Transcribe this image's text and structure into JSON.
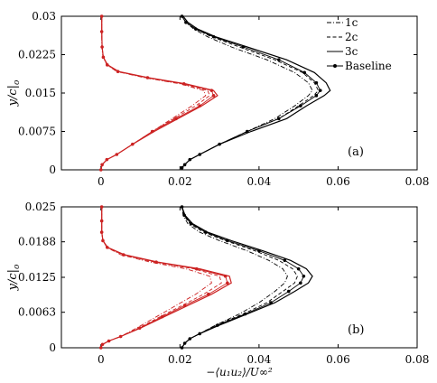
{
  "chart_data": [
    {
      "type": "line",
      "panel_label": "(a)",
      "ylabel": "y/c|_0",
      "xlabel": "",
      "xlim": [
        -0.01,
        0.08
      ],
      "ylim": [
        0,
        0.03
      ],
      "x_ticks": [
        0,
        0.02,
        0.04,
        0.06,
        0.08
      ],
      "x_tick_labels": [
        "0",
        "0.02",
        "0.04",
        "0.06",
        "0.08"
      ],
      "y_ticks": [
        0,
        0.0075,
        0.015,
        0.0225,
        0.03
      ],
      "y_tick_labels": [
        "0",
        "0.0075",
        "0.015",
        "0.0225",
        "0.03"
      ],
      "legend": {
        "placement": "top-right",
        "entries": [
          {
            "name": "1c",
            "style": "dashdot"
          },
          {
            "name": "2c",
            "style": "dashed"
          },
          {
            "name": "3c",
            "style": "solid"
          },
          {
            "name": "Baseline",
            "style": "solid-marker"
          }
        ]
      },
      "series": [
        {
          "group": "black",
          "style": "dashdot",
          "color": "#000000",
          "x": [
            0.0205,
            0.0212,
            0.0225,
            0.025,
            0.03,
            0.037,
            0.044,
            0.049,
            0.0525,
            0.0535,
            0.0525,
            0.049,
            0.042,
            0.033,
            0.027,
            0.0235,
            0.0215,
            0.0205
          ],
          "y": [
            0.0004,
            0.001,
            0.002,
            0.003,
            0.005,
            0.0075,
            0.01,
            0.0125,
            0.0145,
            0.0155,
            0.017,
            0.019,
            0.0215,
            0.024,
            0.026,
            0.0275,
            0.0288,
            0.03
          ]
        },
        {
          "group": "black",
          "style": "dashed",
          "color": "#000000",
          "x": [
            0.0205,
            0.0212,
            0.0225,
            0.025,
            0.03,
            0.037,
            0.045,
            0.05,
            0.0538,
            0.055,
            0.054,
            0.051,
            0.044,
            0.035,
            0.028,
            0.024,
            0.0215,
            0.0205
          ],
          "y": [
            0.0004,
            0.001,
            0.002,
            0.003,
            0.005,
            0.0075,
            0.01,
            0.0125,
            0.0145,
            0.0155,
            0.017,
            0.019,
            0.0215,
            0.024,
            0.026,
            0.0275,
            0.0288,
            0.03
          ]
        },
        {
          "group": "black",
          "style": "solid",
          "color": "#000000",
          "x": [
            0.0205,
            0.0212,
            0.0225,
            0.025,
            0.03,
            0.038,
            0.047,
            0.052,
            0.0565,
            0.058,
            0.057,
            0.054,
            0.047,
            0.037,
            0.029,
            0.0245,
            0.022,
            0.0208
          ],
          "y": [
            0.0004,
            0.001,
            0.002,
            0.003,
            0.005,
            0.0075,
            0.01,
            0.0125,
            0.0145,
            0.0155,
            0.017,
            0.019,
            0.0215,
            0.024,
            0.026,
            0.0275,
            0.0288,
            0.03
          ]
        },
        {
          "group": "black",
          "style": "solid-marker",
          "color": "#000000",
          "x": [
            0.0205,
            0.0212,
            0.0225,
            0.025,
            0.03,
            0.037,
            0.045,
            0.0505,
            0.0545,
            0.0555,
            0.0545,
            0.0515,
            0.045,
            0.036,
            0.0285,
            0.024,
            0.0215,
            0.0205
          ],
          "y": [
            0.0004,
            0.001,
            0.002,
            0.003,
            0.005,
            0.0075,
            0.01,
            0.0125,
            0.0145,
            0.0155,
            0.017,
            0.019,
            0.0215,
            0.024,
            0.026,
            0.0275,
            0.0288,
            0.03
          ]
        },
        {
          "group": "red",
          "style": "dashdot",
          "color": "#cc2222",
          "x": [
            0,
            0.0003,
            0.0015,
            0.004,
            0.008,
            0.013,
            0.018,
            0.023,
            0.0265,
            0.026,
            0.02,
            0.011,
            0.004,
            0.0015,
            0.0005,
            0.0002,
            0.0002,
            0.0002
          ],
          "y": [
            0,
            0.001,
            0.002,
            0.003,
            0.005,
            0.0075,
            0.01,
            0.0125,
            0.0145,
            0.0155,
            0.0168,
            0.018,
            0.0192,
            0.0205,
            0.022,
            0.024,
            0.027,
            0.03
          ]
        },
        {
          "group": "red",
          "style": "dashed",
          "color": "#cc2222",
          "x": [
            0,
            0.0003,
            0.0015,
            0.004,
            0.008,
            0.013,
            0.0185,
            0.024,
            0.0275,
            0.027,
            0.0205,
            0.0115,
            0.0042,
            0.0016,
            0.0006,
            0.0003,
            0.0002,
            0.0002
          ],
          "y": [
            0,
            0.001,
            0.002,
            0.003,
            0.005,
            0.0075,
            0.01,
            0.0125,
            0.0145,
            0.0155,
            0.0168,
            0.018,
            0.0192,
            0.0205,
            0.022,
            0.024,
            0.027,
            0.03
          ]
        },
        {
          "group": "red",
          "style": "solid",
          "color": "#cc2222",
          "x": [
            0,
            0.0003,
            0.0015,
            0.004,
            0.008,
            0.0135,
            0.0195,
            0.0255,
            0.0295,
            0.0285,
            0.0215,
            0.012,
            0.0045,
            0.0017,
            0.0006,
            0.0003,
            0.0002,
            0.0002
          ],
          "y": [
            0,
            0.001,
            0.002,
            0.003,
            0.005,
            0.0075,
            0.01,
            0.0125,
            0.0145,
            0.0155,
            0.0168,
            0.018,
            0.0192,
            0.0205,
            0.022,
            0.024,
            0.027,
            0.03
          ]
        },
        {
          "group": "red",
          "style": "solid-marker",
          "color": "#cc2222",
          "x": [
            0,
            0.0003,
            0.0015,
            0.004,
            0.008,
            0.013,
            0.019,
            0.025,
            0.0285,
            0.028,
            0.021,
            0.0118,
            0.0043,
            0.0016,
            0.0006,
            0.0003,
            0.0002,
            0.0002
          ],
          "y": [
            0,
            0.001,
            0.002,
            0.003,
            0.005,
            0.0075,
            0.01,
            0.0125,
            0.0145,
            0.0155,
            0.0168,
            0.018,
            0.0192,
            0.0205,
            0.022,
            0.024,
            0.027,
            0.03
          ]
        }
      ]
    },
    {
      "type": "line",
      "panel_label": "(b)",
      "ylabel": "y/c|_0",
      "xlabel": "−⟨u₁u₂⟩/U∞²",
      "xlim": [
        -0.01,
        0.08
      ],
      "ylim": [
        0,
        0.025
      ],
      "x_ticks": [
        0,
        0.02,
        0.04,
        0.06,
        0.08
      ],
      "x_tick_labels": [
        "0",
        "0.02",
        "0.04",
        "0.06",
        "0.08"
      ],
      "y_ticks": [
        0,
        0.0063,
        0.0125,
        0.0188,
        0.025
      ],
      "y_tick_labels": [
        "0",
        "0.0063",
        "0.0125",
        "0.0188",
        "0.025"
      ],
      "series": [
        {
          "group": "black",
          "style": "dashdot",
          "color": "#000000",
          "x": [
            0.0205,
            0.0212,
            0.0225,
            0.025,
            0.029,
            0.035,
            0.04,
            0.044,
            0.0465,
            0.0472,
            0.046,
            0.0425,
            0.037,
            0.03,
            0.025,
            0.022,
            0.0208,
            0.0205
          ],
          "y": [
            0,
            0.0008,
            0.0016,
            0.0025,
            0.004,
            0.006,
            0.008,
            0.01,
            0.0115,
            0.0127,
            0.014,
            0.0155,
            0.0172,
            0.019,
            0.0205,
            0.022,
            0.0235,
            0.025
          ]
        },
        {
          "group": "black",
          "style": "dashed",
          "color": "#000000",
          "x": [
            0.0205,
            0.0212,
            0.0225,
            0.025,
            0.029,
            0.036,
            0.042,
            0.046,
            0.049,
            0.0497,
            0.0485,
            0.045,
            0.039,
            0.0315,
            0.026,
            0.0225,
            0.021,
            0.0205
          ],
          "y": [
            0,
            0.0008,
            0.0016,
            0.0025,
            0.004,
            0.006,
            0.008,
            0.01,
            0.0115,
            0.0127,
            0.014,
            0.0155,
            0.0172,
            0.019,
            0.0205,
            0.022,
            0.0235,
            0.025
          ]
        },
        {
          "group": "black",
          "style": "solid",
          "color": "#000000",
          "x": [
            0.0205,
            0.0212,
            0.0225,
            0.025,
            0.03,
            0.037,
            0.044,
            0.049,
            0.0525,
            0.0535,
            0.052,
            0.048,
            0.041,
            0.033,
            0.027,
            0.0232,
            0.0213,
            0.0205
          ],
          "y": [
            0,
            0.0008,
            0.0016,
            0.0025,
            0.004,
            0.006,
            0.008,
            0.01,
            0.0115,
            0.0127,
            0.014,
            0.0155,
            0.0172,
            0.019,
            0.0205,
            0.022,
            0.0235,
            0.025
          ]
        },
        {
          "group": "black",
          "style": "solid-marker",
          "color": "#000000",
          "x": [
            0.0205,
            0.0212,
            0.0225,
            0.025,
            0.0295,
            0.0365,
            0.043,
            0.0475,
            0.0505,
            0.0513,
            0.05,
            0.0465,
            0.04,
            0.032,
            0.0265,
            0.0228,
            0.0211,
            0.0205
          ],
          "y": [
            0,
            0.0008,
            0.0016,
            0.0025,
            0.004,
            0.006,
            0.008,
            0.01,
            0.0115,
            0.0127,
            0.014,
            0.0155,
            0.0172,
            0.019,
            0.0205,
            0.022,
            0.0235,
            0.025
          ]
        },
        {
          "group": "red",
          "style": "dashdot",
          "color": "#cc2222",
          "x": [
            0,
            0.0004,
            0.002,
            0.005,
            0.009,
            0.014,
            0.019,
            0.024,
            0.028,
            0.0275,
            0.0215,
            0.0125,
            0.005,
            0.0015,
            0.0005,
            0.0002,
            0.0002,
            0.0002
          ],
          "y": [
            0,
            0.0006,
            0.0012,
            0.002,
            0.0035,
            0.0055,
            0.0075,
            0.0095,
            0.0115,
            0.0127,
            0.014,
            0.0152,
            0.0165,
            0.0178,
            0.019,
            0.0205,
            0.0225,
            0.025
          ]
        },
        {
          "group": "red",
          "style": "dashed",
          "color": "#cc2222",
          "x": [
            0,
            0.0004,
            0.002,
            0.005,
            0.0095,
            0.015,
            0.0205,
            0.026,
            0.0305,
            0.03,
            0.0235,
            0.0135,
            0.0055,
            0.0016,
            0.0005,
            0.0002,
            0.0002,
            0.0002
          ],
          "y": [
            0,
            0.0006,
            0.0012,
            0.002,
            0.0035,
            0.0055,
            0.0075,
            0.0095,
            0.0115,
            0.0127,
            0.014,
            0.0152,
            0.0165,
            0.0178,
            0.019,
            0.0205,
            0.0225,
            0.025
          ]
        },
        {
          "group": "red",
          "style": "solid",
          "color": "#cc2222",
          "x": [
            0,
            0.0004,
            0.002,
            0.005,
            0.01,
            0.016,
            0.022,
            0.028,
            0.033,
            0.0325,
            0.025,
            0.0145,
            0.006,
            0.0017,
            0.0005,
            0.0002,
            0.0002,
            0.0002
          ],
          "y": [
            0,
            0.0006,
            0.0012,
            0.002,
            0.0035,
            0.0055,
            0.0075,
            0.0095,
            0.0115,
            0.0127,
            0.014,
            0.0152,
            0.0165,
            0.0178,
            0.019,
            0.0205,
            0.0225,
            0.025
          ]
        },
        {
          "group": "red",
          "style": "solid-marker",
          "color": "#cc2222",
          "x": [
            0,
            0.0004,
            0.002,
            0.005,
            0.0098,
            0.0155,
            0.0212,
            0.0272,
            0.032,
            0.0315,
            0.0242,
            0.014,
            0.0057,
            0.0016,
            0.0005,
            0.0002,
            0.0002,
            0.0002
          ],
          "y": [
            0,
            0.0006,
            0.0012,
            0.002,
            0.0035,
            0.0055,
            0.0075,
            0.0095,
            0.0115,
            0.0127,
            0.014,
            0.0152,
            0.0165,
            0.0178,
            0.019,
            0.0205,
            0.0225,
            0.025
          ]
        }
      ]
    }
  ]
}
